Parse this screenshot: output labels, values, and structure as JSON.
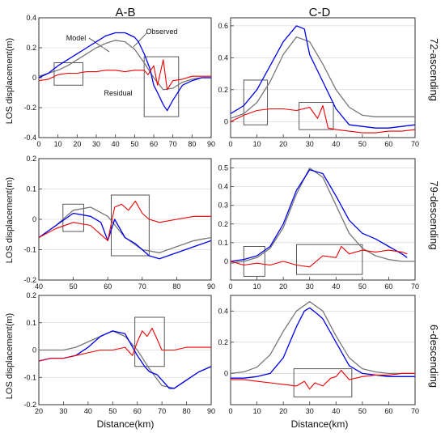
{
  "figure": {
    "column_titles": [
      "A-B",
      "C-D"
    ],
    "row_titles": [
      "72-ascending",
      "79-descending",
      "6-descending"
    ],
    "ylabel": "LOS displacement(m)",
    "xlabel": "Distance(km)",
    "colors": {
      "observed": "#0000ee",
      "model": "#777777",
      "residual": "#ee0000",
      "frame": "#333333",
      "grid": "#cccccc"
    },
    "annotations": {
      "model": "Model",
      "observed": "Observed",
      "residual": "Residual"
    }
  },
  "chart_data": [
    {
      "type": "line",
      "panel": "72-ascending A-B",
      "xlim": [
        0,
        90
      ],
      "ylim": [
        -0.4,
        0.4
      ],
      "xticks": [
        0,
        10,
        20,
        30,
        40,
        50,
        60,
        70,
        80,
        90
      ],
      "yticks": [
        -0.4,
        -0.2,
        0,
        0.2,
        0.4
      ],
      "ytick_labels": [
        "-0.4",
        "-0.2",
        "0",
        "0.2",
        "0.4"
      ],
      "series": [
        {
          "name": "Observed",
          "x": [
            0,
            5,
            10,
            15,
            20,
            25,
            30,
            35,
            40,
            45,
            50,
            52,
            55,
            58,
            60,
            62,
            65,
            67,
            70,
            75,
            80,
            85,
            90
          ],
          "y": [
            0,
            0.03,
            0.08,
            0.12,
            0.16,
            0.2,
            0.24,
            0.28,
            0.3,
            0.3,
            0.27,
            0.24,
            0.16,
            0.06,
            -0.05,
            -0.1,
            -0.18,
            -0.22,
            -0.15,
            -0.05,
            -0.02,
            0,
            0
          ]
        },
        {
          "name": "Model",
          "x": [
            0,
            5,
            10,
            15,
            20,
            25,
            30,
            35,
            40,
            45,
            50,
            55,
            60,
            65,
            70,
            75,
            80,
            85,
            90
          ],
          "y": [
            0.01,
            0.03,
            0.05,
            0.08,
            0.12,
            0.16,
            0.2,
            0.23,
            0.25,
            0.24,
            0.19,
            0.1,
            0.0,
            -0.08,
            -0.07,
            -0.03,
            -0.01,
            0,
            0
          ]
        },
        {
          "name": "Residual",
          "x": [
            0,
            5,
            10,
            15,
            20,
            25,
            30,
            35,
            40,
            45,
            50,
            55,
            57,
            60,
            62,
            65,
            67,
            70,
            75,
            80,
            85,
            90
          ],
          "y": [
            -0.02,
            -0.01,
            0.02,
            0.03,
            0.03,
            0.04,
            0.04,
            0.05,
            0.05,
            0.04,
            0.05,
            0.05,
            0.02,
            0.08,
            -0.05,
            0.12,
            -0.08,
            -0.02,
            -0.01,
            0.01,
            0.01,
            0.01
          ]
        }
      ],
      "boxes": [
        [
          8,
          -0.05,
          23,
          0.1
        ],
        [
          55,
          -0.26,
          73,
          0.14
        ]
      ]
    },
    {
      "type": "line",
      "panel": "72-ascending C-D",
      "xlim": [
        0,
        70
      ],
      "ylim": [
        -0.1,
        0.65
      ],
      "xticks": [
        0,
        10,
        20,
        30,
        40,
        50,
        60,
        70
      ],
      "yticks": [
        0,
        0.2,
        0.4,
        0.6
      ],
      "ytick_labels": [
        "0",
        "0.2",
        "0.4",
        "0.6"
      ],
      "series": [
        {
          "name": "Observed",
          "x": [
            0,
            5,
            10,
            15,
            20,
            25,
            28,
            30,
            35,
            40,
            45,
            50,
            55,
            60,
            65,
            70
          ],
          "y": [
            0.05,
            0.1,
            0.2,
            0.35,
            0.5,
            0.6,
            0.58,
            0.42,
            0.25,
            0.08,
            -0.02,
            -0.03,
            -0.04,
            -0.04,
            -0.03,
            -0.02
          ]
        },
        {
          "name": "Model",
          "x": [
            0,
            5,
            10,
            15,
            20,
            25,
            30,
            35,
            40,
            45,
            50,
            55,
            60,
            65,
            70
          ],
          "y": [
            0.02,
            0.05,
            0.12,
            0.25,
            0.42,
            0.53,
            0.5,
            0.36,
            0.2,
            0.09,
            0.04,
            0.03,
            0.03,
            0.03,
            0.03
          ]
        },
        {
          "name": "Residual",
          "x": [
            0,
            5,
            10,
            15,
            20,
            25,
            30,
            33,
            35,
            37,
            40,
            45,
            50,
            55,
            60,
            65,
            70
          ],
          "y": [
            0.0,
            0.04,
            0.07,
            0.08,
            0.08,
            0.07,
            0.09,
            0.02,
            0.1,
            -0.04,
            -0.05,
            -0.06,
            -0.07,
            -0.07,
            -0.06,
            -0.06,
            -0.05
          ]
        }
      ],
      "boxes": [
        [
          5,
          -0.02,
          14,
          0.26
        ],
        [
          26,
          -0.05,
          39,
          0.12
        ]
      ]
    },
    {
      "type": "line",
      "panel": "79-descending A-B",
      "xlim": [
        40,
        90
      ],
      "ylim": [
        -0.2,
        0.2
      ],
      "xticks": [
        40,
        50,
        60,
        70,
        80,
        90
      ],
      "yticks": [
        -0.2,
        -0.1,
        0,
        0.1,
        0.2
      ],
      "ytick_labels": [
        "-0.2",
        "-0.1",
        "0",
        "0.1",
        "0.2"
      ],
      "series": [
        {
          "name": "Observed",
          "x": [
            40,
            45,
            50,
            55,
            58,
            60,
            62,
            65,
            68,
            72,
            75,
            80,
            85,
            90
          ],
          "y": [
            -0.06,
            -0.02,
            0.02,
            0.01,
            -0.01,
            -0.07,
            0.0,
            -0.06,
            -0.08,
            -0.12,
            -0.13,
            -0.11,
            -0.09,
            -0.07
          ]
        },
        {
          "name": "Model",
          "x": [
            40,
            45,
            50,
            55,
            60,
            65,
            70,
            75,
            80,
            85,
            90
          ],
          "y": [
            -0.06,
            -0.02,
            0.03,
            0.04,
            0.01,
            -0.06,
            -0.1,
            -0.11,
            -0.09,
            -0.07,
            -0.06
          ]
        },
        {
          "name": "Residual",
          "x": [
            40,
            45,
            50,
            55,
            58,
            60,
            62,
            64,
            66,
            68,
            70,
            72,
            75,
            80,
            85,
            90
          ],
          "y": [
            -0.06,
            -0.03,
            -0.01,
            -0.02,
            -0.05,
            -0.07,
            0.04,
            0.05,
            0.03,
            0.06,
            0.02,
            0.0,
            -0.01,
            0.0,
            0.01,
            0.01
          ]
        }
      ],
      "boxes": [
        [
          47,
          -0.04,
          53,
          0.05
        ],
        [
          61,
          -0.12,
          72,
          0.08
        ]
      ]
    },
    {
      "type": "line",
      "panel": "79-descending C-D",
      "xlim": [
        0,
        70
      ],
      "ylim": [
        -0.1,
        0.55
      ],
      "xticks": [
        0,
        10,
        20,
        30,
        40,
        50,
        60,
        70
      ],
      "yticks": [
        0,
        0.1,
        0.2,
        0.3,
        0.4,
        0.5
      ],
      "ytick_labels": [
        "0",
        "0.1",
        "0.2",
        "0.3",
        "0.4",
        "0.5"
      ],
      "series": [
        {
          "name": "Observed",
          "x": [
            0,
            5,
            10,
            15,
            20,
            25,
            30,
            35,
            40,
            45,
            50,
            55,
            60,
            65,
            67
          ],
          "y": [
            0.0,
            0.01,
            0.03,
            0.08,
            0.2,
            0.38,
            0.49,
            0.47,
            0.35,
            0.22,
            0.15,
            0.12,
            0.08,
            0.04,
            0.02
          ]
        },
        {
          "name": "Model",
          "x": [
            0,
            5,
            10,
            15,
            20,
            25,
            30,
            35,
            40,
            45,
            50,
            55,
            60,
            65,
            70
          ],
          "y": [
            -0.01,
            0.0,
            0.02,
            0.07,
            0.18,
            0.36,
            0.5,
            0.45,
            0.3,
            0.15,
            0.07,
            0.03,
            0.01,
            0.0,
            0.0
          ]
        },
        {
          "name": "Residual",
          "x": [
            0,
            5,
            10,
            15,
            20,
            25,
            30,
            35,
            40,
            42,
            45,
            50,
            55,
            60,
            65,
            67
          ],
          "y": [
            0.0,
            -0.02,
            -0.01,
            -0.02,
            0.0,
            -0.02,
            -0.03,
            0.03,
            0.02,
            0.08,
            0.04,
            0.06,
            0.05,
            0.06,
            0.05,
            0.04
          ]
        }
      ],
      "boxes": [
        [
          5,
          -0.08,
          13,
          0.08
        ],
        [
          25,
          -0.07,
          50,
          0.09
        ]
      ]
    },
    {
      "type": "line",
      "panel": "6-descending A-B",
      "xlim": [
        20,
        90
      ],
      "ylim": [
        -0.2,
        0.2
      ],
      "xticks": [
        20,
        30,
        40,
        50,
        60,
        70,
        80,
        90
      ],
      "yticks": [
        -0.2,
        -0.1,
        0,
        0.1,
        0.2
      ],
      "ytick_labels": [
        "-0.2",
        "-0.1",
        "0",
        "0.1",
        "0.2"
      ],
      "series": [
        {
          "name": "Observed",
          "x": [
            20,
            25,
            30,
            35,
            40,
            45,
            50,
            55,
            60,
            63,
            65,
            68,
            70,
            73,
            75,
            80,
            85,
            90
          ],
          "y": [
            -0.04,
            -0.03,
            -0.03,
            -0.02,
            0.01,
            0.05,
            0.07,
            0.06,
            -0.02,
            -0.06,
            -0.08,
            -0.09,
            -0.11,
            -0.14,
            -0.14,
            -0.11,
            -0.08,
            -0.06
          ]
        },
        {
          "name": "Model",
          "x": [
            20,
            25,
            30,
            35,
            40,
            45,
            50,
            55,
            60,
            65,
            70,
            75,
            80,
            85,
            90
          ],
          "y": [
            0.0,
            0.0,
            0.0,
            0.01,
            0.03,
            0.05,
            0.07,
            0.05,
            0.0,
            -0.07,
            -0.13,
            -0.14,
            -0.11,
            -0.08,
            -0.06
          ]
        },
        {
          "name": "Residual",
          "x": [
            20,
            25,
            30,
            35,
            40,
            45,
            50,
            55,
            58,
            60,
            62,
            64,
            66,
            68,
            70,
            75,
            80,
            85,
            90
          ],
          "y": [
            -0.04,
            -0.03,
            -0.03,
            -0.02,
            -0.01,
            0.0,
            0.0,
            0.01,
            -0.02,
            0.03,
            0.07,
            0.05,
            0.08,
            0.04,
            0.0,
            0.0,
            0.01,
            0.01,
            0.01
          ]
        }
      ],
      "boxes": [
        [
          59,
          -0.06,
          71,
          0.12
        ]
      ]
    },
    {
      "type": "line",
      "panel": "6-descending C-D",
      "xlim": [
        0,
        70
      ],
      "ylim": [
        -0.2,
        0.5
      ],
      "xticks": [
        0,
        10,
        20,
        30,
        40,
        50,
        60,
        70
      ],
      "yticks": [
        0,
        0.2,
        0.4
      ],
      "ytick_labels": [
        "0",
        "0.2",
        "0.4"
      ],
      "series": [
        {
          "name": "Observed",
          "x": [
            0,
            5,
            10,
            15,
            20,
            25,
            28,
            30,
            33,
            35,
            40,
            45,
            50,
            55,
            60,
            65,
            70
          ],
          "y": [
            -0.03,
            -0.03,
            -0.02,
            0.0,
            0.1,
            0.3,
            0.4,
            0.42,
            0.38,
            0.35,
            0.2,
            0.05,
            0.0,
            -0.01,
            -0.02,
            -0.02,
            -0.02
          ]
        },
        {
          "name": "Model",
          "x": [
            0,
            5,
            10,
            15,
            20,
            25,
            30,
            35,
            40,
            45,
            50,
            55,
            60,
            65,
            70
          ],
          "y": [
            0.0,
            0.01,
            0.04,
            0.12,
            0.27,
            0.4,
            0.46,
            0.4,
            0.24,
            0.1,
            0.03,
            0.01,
            0.0,
            0.0,
            0.0
          ]
        },
        {
          "name": "Residual",
          "x": [
            0,
            5,
            10,
            15,
            20,
            25,
            28,
            30,
            32,
            35,
            38,
            40,
            42,
            45,
            50,
            55,
            60,
            65,
            70
          ],
          "y": [
            -0.04,
            -0.04,
            -0.05,
            -0.06,
            -0.07,
            -0.08,
            -0.05,
            -0.1,
            -0.06,
            -0.08,
            -0.03,
            -0.02,
            0.02,
            -0.04,
            -0.02,
            -0.01,
            -0.01,
            0.0,
            0.0
          ]
        }
      ],
      "boxes": [
        [
          24,
          -0.15,
          46,
          0.03
        ]
      ]
    }
  ]
}
